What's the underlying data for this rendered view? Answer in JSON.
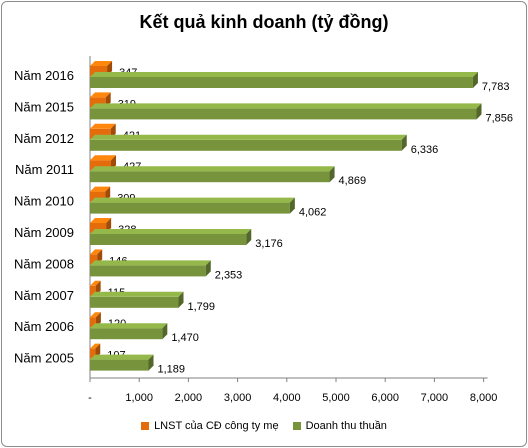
{
  "chart_data": {
    "type": "bar",
    "orientation": "horizontal",
    "title": "Kết quả kinh doanh (tỷ đồng)",
    "categories": [
      "Năm 2016",
      "Năm 2015",
      "Năm 2012",
      "Năm 2011",
      "Năm 2010",
      "Năm 2009",
      "Năm 2008",
      "Năm 2007",
      "Năm 2006",
      "Năm 2005"
    ],
    "series": [
      {
        "name": "LNST  của CĐ công ty mẹ",
        "color": "#e46c0a",
        "values": [
          347,
          319,
          421,
          427,
          309,
          328,
          146,
          115,
          120,
          107
        ],
        "labels": [
          "347",
          "319",
          "421",
          "427",
          "309",
          "328",
          "146",
          "115",
          "120",
          "107"
        ]
      },
      {
        "name": "Doanh thu thuần",
        "color": "#77933c",
        "values": [
          7783,
          7856,
          6336,
          4869,
          4062,
          3176,
          2353,
          1799,
          1470,
          1189
        ],
        "labels": [
          "7,783",
          "7,856",
          "6,336",
          "4,869",
          "4,062",
          "3,176",
          "2,353",
          "1,799",
          "1,470",
          "1,189"
        ]
      }
    ],
    "xlim": [
      0,
      8000
    ],
    "xticks": [
      "-",
      "1,000",
      "2,000",
      "3,000",
      "4,000",
      "5,000",
      "6,000",
      "7,000",
      "8,000"
    ],
    "grid": false,
    "legend_position": "bottom"
  }
}
